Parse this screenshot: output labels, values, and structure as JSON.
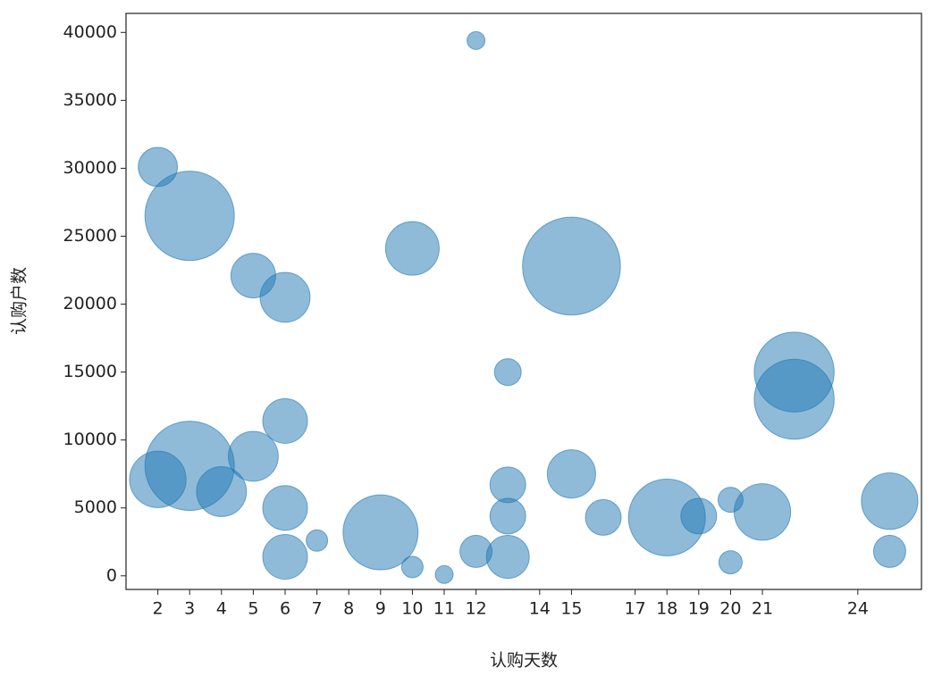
{
  "chart_data": {
    "type": "scatter",
    "x_label": "认购天数",
    "y_label": "认购户数",
    "series": [
      {
        "color": "#1f77b4",
        "x": [
          12,
          2,
          3,
          10,
          5,
          15,
          6,
          22,
          13,
          2,
          3,
          4,
          5,
          6,
          6,
          6,
          7,
          9,
          10,
          11,
          12,
          13,
          13,
          13,
          15,
          16,
          18,
          19,
          20,
          21,
          22,
          25,
          25,
          20
        ],
        "values": [
          39400,
          30100,
          26500,
          24100,
          22100,
          22800,
          20500,
          15000,
          15000,
          7100,
          8100,
          6200,
          8800,
          11400,
          5000,
          1400,
          2600,
          3200,
          650,
          100,
          1800,
          6700,
          4400,
          1400,
          7500,
          4300,
          4300,
          4400,
          5600,
          4700,
          13000,
          5500,
          1800,
          1000
        ],
        "sizes": [
          100,
          480,
          2500,
          900,
          625,
          3000,
          780,
          2000,
          225,
          1000,
          2500,
          780,
          780,
          625,
          625,
          625,
          144,
          1760,
          144,
          100,
          324,
          400,
          400,
          576,
          730,
          400,
          1850,
          400,
          196,
          1000,
          2000,
          1000,
          324,
          169
        ]
      }
    ],
    "xlim": [
      1,
      26
    ],
    "ylim": [
      -1000,
      41400
    ],
    "xticks": [
      2,
      3,
      4,
      5,
      6,
      7,
      8,
      9,
      10,
      11,
      12,
      14,
      15,
      17,
      18,
      19,
      20,
      21,
      24
    ],
    "yticks": [
      0,
      5000,
      10000,
      15000,
      20000,
      25000,
      30000,
      35000,
      40000
    ]
  }
}
